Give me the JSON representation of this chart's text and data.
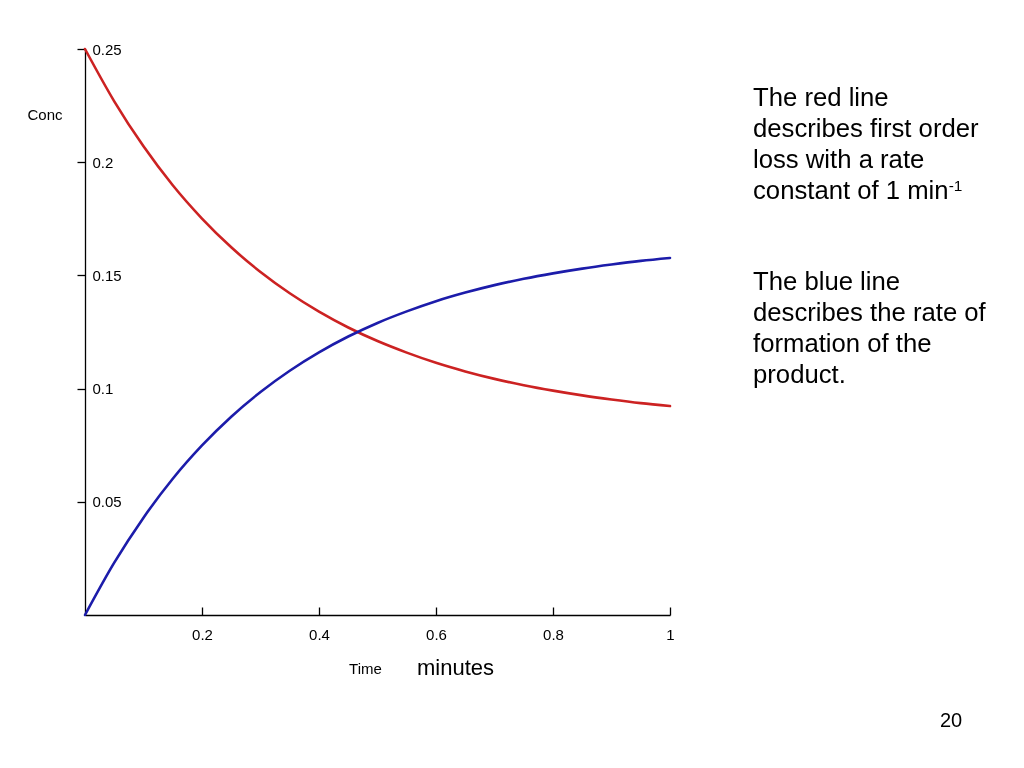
{
  "chart_data": {
    "type": "line",
    "xlabel": "Time",
    "ylabel": "Conc",
    "annotations": [
      "The red line describes first order loss with a rate constant of 1 min$^{-1}$",
      "The blue line describes the rate of formation of the product.",
      "minutes",
      "20"
    ],
    "x": [
      0,
      0.05,
      0.1,
      0.15,
      0.2,
      0.25,
      0.3,
      0.35,
      0.4,
      0.45,
      0.5,
      0.55,
      0.6,
      0.65,
      0.7,
      0.75,
      0.8,
      0.85,
      0.9,
      0.95,
      1
    ],
    "series": [
      {
        "color": "#cc2222",
        "values": [
          0.25,
          0.2269,
          0.207,
          0.1898,
          0.1751,
          0.1624,
          0.1515,
          0.1421,
          0.134,
          0.127,
          0.121,
          0.1159,
          0.1114,
          0.1076,
          0.1043,
          0.1015,
          0.0991,
          0.097,
          0.0952,
          0.0936,
          0.0923
        ]
      },
      {
        "color": "#1c1caa",
        "values": [
          0,
          0.0231,
          0.043,
          0.0602,
          0.0749,
          0.0876,
          0.0985,
          0.1079,
          0.116,
          0.123,
          0.129,
          0.1341,
          0.1386,
          0.1424,
          0.1457,
          0.1485,
          0.1509,
          0.153,
          0.1548,
          0.1564,
          0.1577
        ]
      }
    ],
    "xlim": [
      0,
      1
    ],
    "ylim": [
      0,
      0.25
    ],
    "xticks": [
      0.2,
      0.4,
      0.6,
      0.8,
      1
    ],
    "yticks": [
      0.05,
      0.1,
      0.15,
      0.2,
      0.25
    ]
  }
}
